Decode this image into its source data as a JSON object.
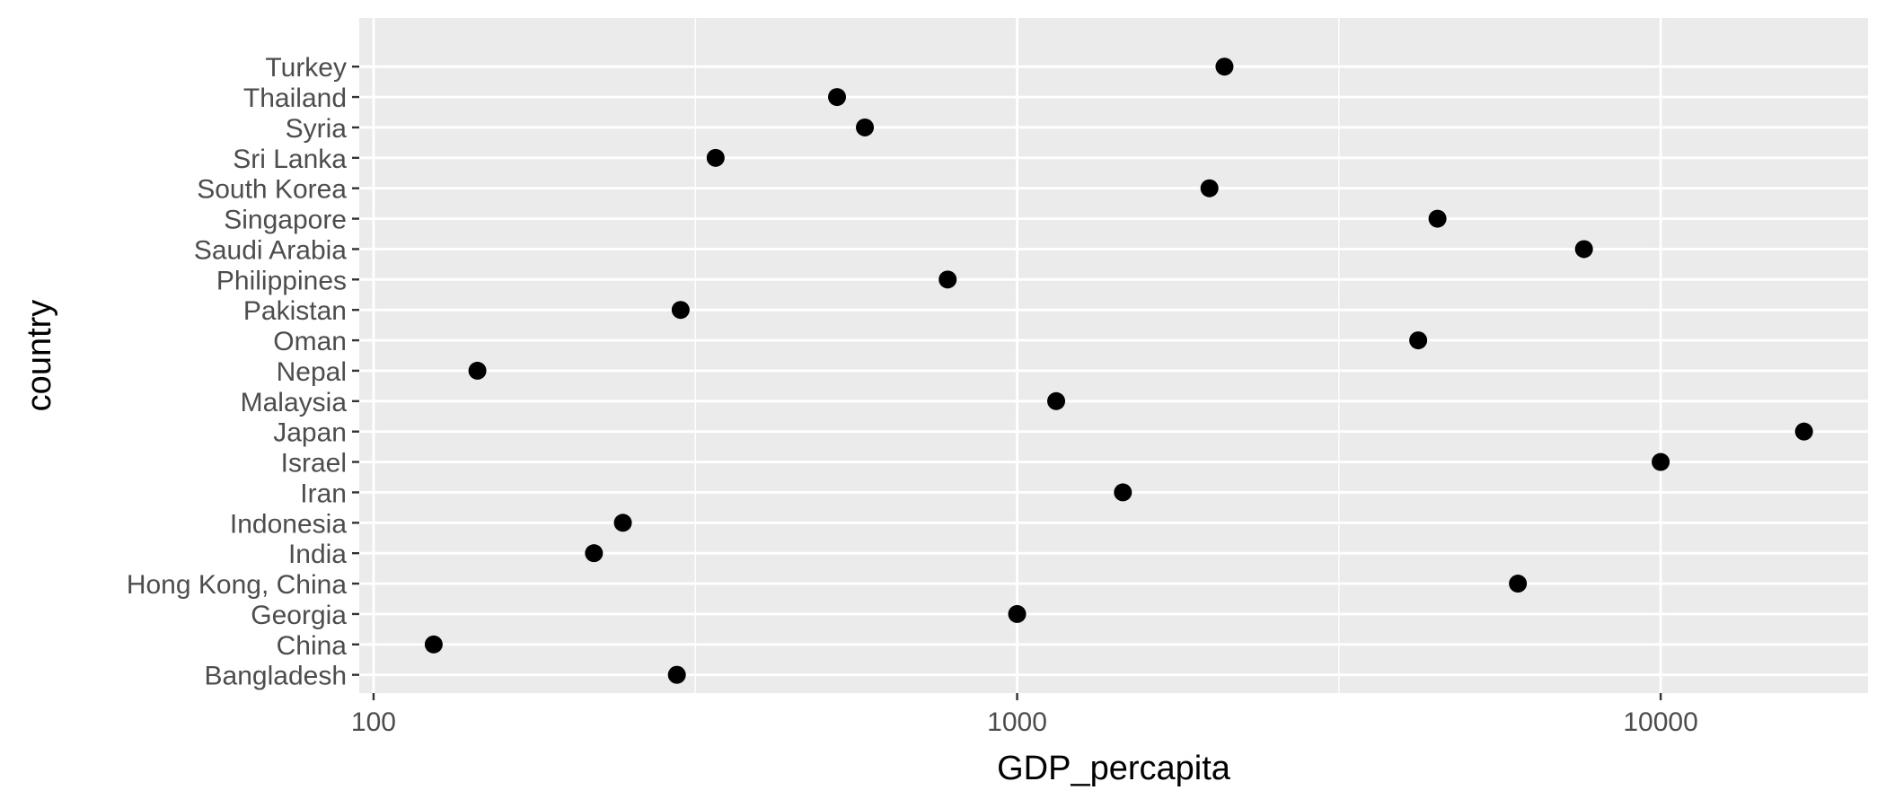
{
  "chart_data": {
    "type": "scatter",
    "title": "",
    "xlabel": "GDP_percapita",
    "ylabel": "country",
    "x_scale": "log10",
    "xlim": [
      95,
      21000
    ],
    "x_ticks": [
      100,
      1000,
      10000
    ],
    "x_tick_labels": [
      "100",
      "1000",
      "10000"
    ],
    "grid": true,
    "panel_background": "#ebebeb",
    "grid_color": "#ffffff",
    "point_color": "#000000",
    "categories": [
      "Bangladesh",
      "China",
      "Georgia",
      "Hong Kong, China",
      "India",
      "Indonesia",
      "Iran",
      "Israel",
      "Japan",
      "Malaysia",
      "Nepal",
      "Oman",
      "Pakistan",
      "Philippines",
      "Saudi Arabia",
      "Singapore",
      "South Korea",
      "Sri Lanka",
      "Syria",
      "Thailand",
      "Turkey"
    ],
    "values": [
      296,
      124,
      1000,
      6000,
      220,
      244,
      1460,
      10000,
      16700,
      1150,
      145,
      4200,
      300,
      780,
      7600,
      4500,
      1990,
      340,
      580,
      525,
      2100
    ]
  }
}
